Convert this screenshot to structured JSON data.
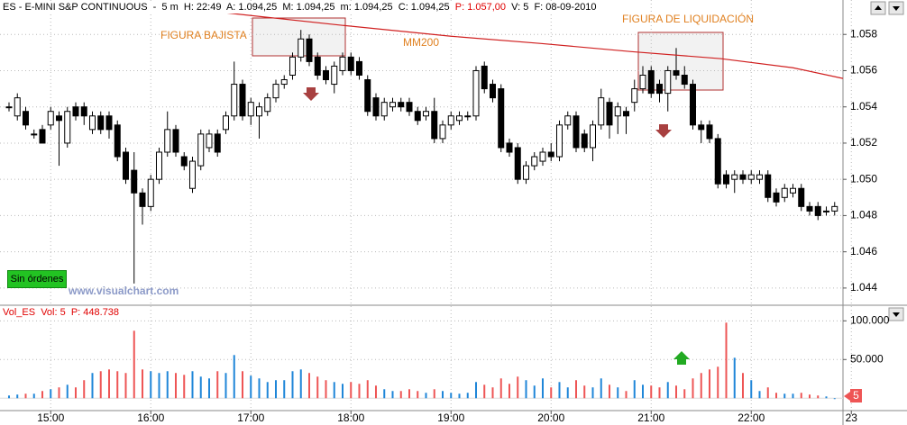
{
  "chart_data": {
    "type": "candlestick",
    "header": "ES - E-MINI S&P CONTINUOUS  -  5 m  H: 22:49  A: 1.094,25  M: 1.094,25  m: 1.094,25  C: 1.094,25",
    "header_price": "P: 1.057,00",
    "header_tail": "V: 5  F: 08-09-2010",
    "annotations": [
      "FIGURA BAJISTA",
      "MM200",
      "FIGURA DE LIQUIDACIÓN"
    ],
    "watermark": "www.visualchart.com",
    "button": "Sin órdenes",
    "up_color": "#ffffff",
    "down_color": "#000000",
    "grid": true,
    "xlim": [
      869.6,
      1375
    ],
    "xticks": [
      {
        "value": 900,
        "label": "15:00"
      },
      {
        "value": 960,
        "label": "16:00"
      },
      {
        "value": 1020,
        "label": "17:00"
      },
      {
        "value": 1080,
        "label": "18:00"
      },
      {
        "value": 1140,
        "label": "19:00"
      },
      {
        "value": 1200,
        "label": "20:00"
      },
      {
        "value": 1260,
        "label": "21:00"
      },
      {
        "value": 1320,
        "label": "22:00"
      },
      {
        "value": 1380,
        "label": "23"
      }
    ],
    "ylim": [
      1043.1,
      1059.9
    ],
    "yticks": [
      {
        "value": 1044,
        "label": "1.044"
      },
      {
        "value": 1046,
        "label": "1.046"
      },
      {
        "value": 1048,
        "label": "1.048"
      },
      {
        "value": 1050,
        "label": "1.050"
      },
      {
        "value": 1052,
        "label": "1.052"
      },
      {
        "value": 1054,
        "label": "1.054"
      },
      {
        "value": 1056,
        "label": "1.056"
      },
      {
        "value": 1058,
        "label": "1.058"
      }
    ],
    "x": [
      875,
      880,
      885,
      890,
      895,
      900,
      905,
      910,
      915,
      920,
      925,
      930,
      935,
      940,
      945,
      950,
      955,
      960,
      965,
      970,
      975,
      980,
      985,
      990,
      995,
      1000,
      1005,
      1010,
      1015,
      1020,
      1025,
      1030,
      1035,
      1040,
      1045,
      1050,
      1055,
      1060,
      1065,
      1070,
      1075,
      1080,
      1085,
      1090,
      1095,
      1100,
      1105,
      1110,
      1115,
      1120,
      1125,
      1130,
      1135,
      1140,
      1145,
      1150,
      1155,
      1160,
      1165,
      1170,
      1175,
      1180,
      1185,
      1190,
      1195,
      1200,
      1205,
      1210,
      1215,
      1220,
      1225,
      1230,
      1235,
      1240,
      1245,
      1250,
      1255,
      1260,
      1265,
      1270,
      1275,
      1280,
      1285,
      1290,
      1295,
      1300,
      1305,
      1310,
      1315,
      1320,
      1325,
      1330,
      1335,
      1340,
      1345,
      1350,
      1355,
      1360,
      1365,
      1370
    ],
    "open": [
      1054,
      1053.5,
      1053.75,
      1052.5,
      1052.75,
      1053,
      1053.5,
      1052,
      1054,
      1054,
      1052.75,
      1053.5,
      1053.5,
      1053,
      1051.5,
      1050.5,
      1049.25,
      1048.5,
      1050,
      1051.5,
      1052.75,
      1051.25,
      1049.5,
      1050.75,
      1051.75,
      1052.5,
      1052.75,
      1053.5,
      1055.25,
      1053.5,
      1053.5,
      1053.75,
      1054.5,
      1055.25,
      1055.75,
      1056.75,
      1057.75,
      1056.75,
      1056,
      1055.25,
      1056,
      1056.75,
      1056.5,
      1055.5,
      1054.5,
      1053.5,
      1054,
      1054.25,
      1054.25,
      1053.75,
      1053.5,
      1053.75,
      1052.25,
      1053,
      1053.25,
      1053.5,
      1053.5,
      1056.25,
      1055.25,
      1055,
      1052,
      1051.75,
      1050,
      1050.75,
      1051,
      1051.5,
      1051.25,
      1053,
      1053.5,
      1052.5,
      1051.75,
      1053,
      1054.25,
      1053.5,
      1053.75,
      1054.25,
      1055,
      1056,
      1055.25,
      1054.75,
      1056,
      1055.75,
      1055.25,
      1053,
      1053,
      1052.25,
      1050.25,
      1050,
      1050.25,
      1050,
      1050,
      1050.25,
      1049.25,
      1049,
      1049.25,
      1049.5,
      1048.5,
      1048.5,
      1048.25,
      1048.25
    ],
    "high": [
      1054.25,
      1054.75,
      1054,
      1052.75,
      1053,
      1054,
      1053.75,
      1054,
      1054.25,
      1054.25,
      1053.75,
      1053.75,
      1053.75,
      1053.25,
      1051.75,
      1051.5,
      1049.5,
      1050.25,
      1051.75,
      1053.75,
      1053,
      1051.5,
      1051.25,
      1052.75,
      1052.75,
      1052.75,
      1053.75,
      1056.5,
      1055.5,
      1054.5,
      1054.25,
      1054.75,
      1055.5,
      1055.75,
      1057,
      1058.25,
      1058,
      1057,
      1056.25,
      1056.5,
      1057,
      1057,
      1056.75,
      1055.75,
      1054.75,
      1054.5,
      1054.5,
      1054.5,
      1054.5,
      1054,
      1054,
      1054.5,
      1053.25,
      1053.75,
      1053.75,
      1053.75,
      1056.25,
      1056.5,
      1055.5,
      1055.25,
      1052.25,
      1052,
      1051,
      1051.5,
      1051.75,
      1052,
      1053.25,
      1053.75,
      1053.75,
      1052.75,
      1053.25,
      1055,
      1054.5,
      1054.25,
      1054,
      1055.5,
      1056.25,
      1056.25,
      1055.5,
      1056.25,
      1057.25,
      1056.25,
      1055.5,
      1053.25,
      1053.25,
      1052.5,
      1050.5,
      1050.5,
      1050.5,
      1050.5,
      1050.5,
      1050.5,
      1049.5,
      1049.75,
      1049.75,
      1049.75,
      1048.75,
      1048.75,
      1048.5,
      1048.75
    ],
    "low": [
      1053.75,
      1053.25,
      1052.75,
      1052.25,
      1052,
      1052.75,
      1050.75,
      1051.75,
      1053.25,
      1053,
      1052.5,
      1052.5,
      1052.25,
      1051,
      1049.75,
      1044.25,
      1047.5,
      1048.25,
      1049.75,
      1051.25,
      1051.25,
      1050.5,
      1049.25,
      1050.5,
      1051.5,
      1051.25,
      1052.5,
      1053.25,
      1053.25,
      1053,
      1052.25,
      1053.5,
      1054.25,
      1055,
      1055.5,
      1056.5,
      1056.25,
      1055.5,
      1055.25,
      1054.75,
      1055.75,
      1055.75,
      1055.5,
      1053.5,
      1053.25,
      1053.25,
      1053.75,
      1053.75,
      1053.5,
      1053,
      1053.25,
      1052,
      1052,
      1052.75,
      1053,
      1053.25,
      1053.25,
      1054.75,
      1054.25,
      1051.5,
      1051.25,
      1049.75,
      1049.75,
      1050.5,
      1050.75,
      1051,
      1051,
      1052.75,
      1051.5,
      1051.5,
      1051,
      1052.75,
      1052.25,
      1052.5,
      1052.5,
      1053.75,
      1054.75,
      1054.5,
      1054.25,
      1053.75,
      1055.5,
      1055,
      1052.75,
      1052,
      1052,
      1049.5,
      1049.5,
      1049.25,
      1049.75,
      1049.75,
      1049.75,
      1048.75,
      1048.5,
      1048.75,
      1049,
      1048.25,
      1048,
      1047.75,
      1048,
      1048
    ],
    "close": [
      1054,
      1054.5,
      1053,
      1052.5,
      1052,
      1053.75,
      1053.25,
      1053.75,
      1053.5,
      1053.5,
      1053.5,
      1052.75,
      1052.75,
      1051.25,
      1050,
      1049.25,
      1048.5,
      1050,
      1051.5,
      1052.75,
      1051.5,
      1050.75,
      1051,
      1052.5,
      1052.5,
      1051.5,
      1053.5,
      1055.25,
      1053.5,
      1054.25,
      1054,
      1054.5,
      1055.25,
      1055.5,
      1056.75,
      1057.75,
      1056.5,
      1055.75,
      1055.5,
      1056.25,
      1056.75,
      1056,
      1055.75,
      1053.75,
      1053.5,
      1054.25,
      1054.25,
      1054,
      1053.75,
      1053.25,
      1053.75,
      1052.25,
      1053,
      1053.5,
      1053.5,
      1053.5,
      1056,
      1055,
      1054.5,
      1051.75,
      1051.5,
      1050,
      1050.75,
      1051.25,
      1051.5,
      1051.25,
      1053,
      1053.5,
      1051.75,
      1051.75,
      1053,
      1054.5,
      1053,
      1054,
      1053.5,
      1055,
      1055.75,
      1054.75,
      1054.75,
      1056,
      1055.75,
      1055.25,
      1053,
      1052.75,
      1052.25,
      1049.75,
      1049.75,
      1050.25,
      1050,
      1050.25,
      1050.25,
      1049,
      1048.75,
      1049.5,
      1049.5,
      1048.5,
      1048.25,
      1048,
      1048.25,
      1048.5
    ],
    "line": {
      "color": "#d02020",
      "x": [
        994,
        1075,
        1140,
        1194,
        1248,
        1302,
        1345,
        1375
      ],
      "values": [
        1059.3,
        1058.5,
        1057.9,
        1057.5,
        1057.05,
        1056.66,
        1056.16,
        1055.57
      ]
    },
    "volume": {
      "type": "bar",
      "header": "Vol_ES  Vol: 5  P: 448.738",
      "up_color": "#1f86d8",
      "down_color": "#ee5555",
      "ylim": [
        -16000,
        119000
      ],
      "yticks": [
        {
          "value": 50000,
          "label": "50.000"
        },
        {
          "value": 100000,
          "label": "100.000"
        }
      ],
      "values": [
        3500,
        4700,
        5800,
        5800,
        9300,
        11600,
        14000,
        17400,
        14000,
        23300,
        32600,
        34900,
        37200,
        34900,
        32600,
        87200,
        37200,
        34900,
        32600,
        34900,
        32600,
        30200,
        34900,
        27900,
        25600,
        34900,
        32600,
        55800,
        34900,
        29100,
        25600,
        20900,
        23300,
        23300,
        34900,
        37200,
        32600,
        27900,
        23300,
        20900,
        18600,
        20900,
        18600,
        23300,
        16300,
        11600,
        9300,
        9300,
        11600,
        9300,
        7000,
        11600,
        9300,
        7000,
        5800,
        7000,
        20900,
        17400,
        14000,
        25600,
        18600,
        27900,
        23300,
        16300,
        25600,
        14000,
        20900,
        14000,
        23300,
        16300,
        14000,
        25600,
        17400,
        14000,
        9300,
        23300,
        17400,
        16300,
        14000,
        20900,
        16300,
        11600,
        25600,
        32600,
        37200,
        40700,
        97700,
        52300,
        32600,
        23300,
        9300,
        14000,
        7000,
        5800,
        5800,
        7000,
        4700,
        3500,
        2300,
        5
      ]
    }
  }
}
